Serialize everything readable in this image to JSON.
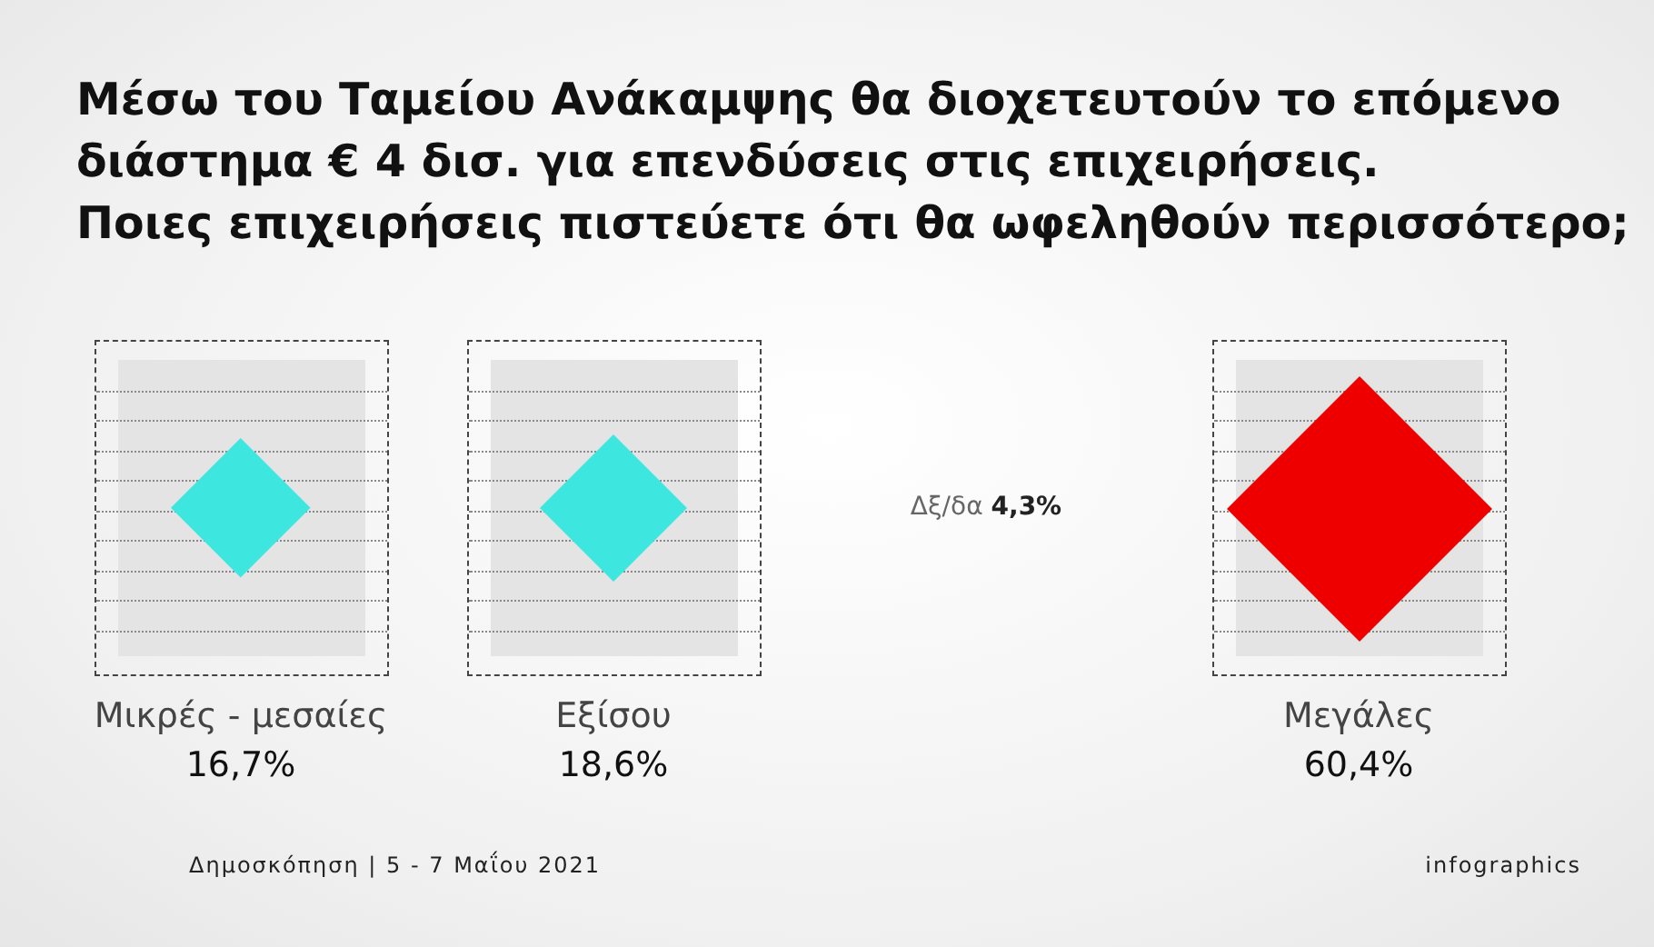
{
  "chart_data": {
    "type": "other",
    "title": "Μέσω του Ταμείου Ανάκαμψης θα διοχετευτούν το επόμενο\nδιάστημα € 4 δισ. για επενδύσεις στις επιχειρήσεις.\nΠοιες επιχειρήσεις πιστεύετε ότι θα ωφεληθούν περισσότερο;",
    "categories": [
      "Μικρές - μεσαίες",
      "Εξίσου",
      "Δξ/δα",
      "Μεγάλες"
    ],
    "values": [
      16.7,
      18.6,
      4.3,
      60.4
    ],
    "value_labels": [
      "16,7%",
      "18,6%",
      "4,3%",
      "60,4%"
    ],
    "colors": [
      "#3ee6e0",
      "#3ee6e0",
      null,
      "#ee0000"
    ],
    "annotations": [
      "Δημοσκόπηση | 5 - 7 Μαΐου 2021",
      "infographics"
    ]
  }
}
